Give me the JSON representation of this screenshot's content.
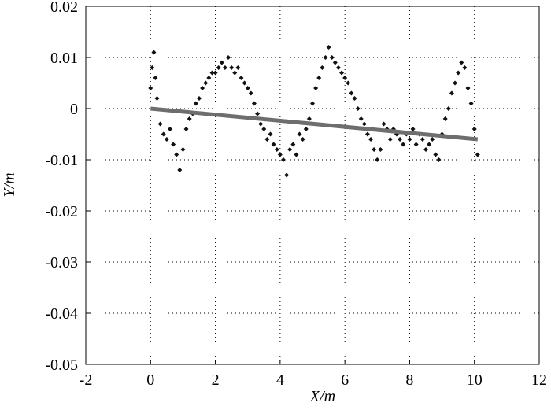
{
  "chart_data": {
    "type": "scatter",
    "xlabel": "X/m",
    "ylabel": "Y/m",
    "xlim": [
      -2,
      12
    ],
    "ylim": [
      -0.05,
      0.02
    ],
    "xticks": [
      -2,
      0,
      2,
      4,
      6,
      8,
      10,
      12
    ],
    "yticks": [
      -0.05,
      -0.04,
      -0.03,
      -0.02,
      -0.01,
      0,
      0.01,
      0.02
    ],
    "grid": true,
    "series": [
      {
        "type": "scatter",
        "color": "#111111",
        "x": [
          0.0,
          0.05,
          0.1,
          0.15,
          0.2,
          0.3,
          0.4,
          0.5,
          0.6,
          0.7,
          0.8,
          0.9,
          1.0,
          1.1,
          1.2,
          1.3,
          1.4,
          1.5,
          1.6,
          1.7,
          1.8,
          1.9,
          2.0,
          2.1,
          2.2,
          2.3,
          2.4,
          2.5,
          2.6,
          2.7,
          2.8,
          2.9,
          3.0,
          3.1,
          3.2,
          3.3,
          3.4,
          3.5,
          3.6,
          3.7,
          3.8,
          3.9,
          4.0,
          4.1,
          4.2,
          4.3,
          4.4,
          4.5,
          4.6,
          4.7,
          4.8,
          4.9,
          5.0,
          5.1,
          5.2,
          5.3,
          5.4,
          5.5,
          5.6,
          5.7,
          5.8,
          5.9,
          6.0,
          6.1,
          6.2,
          6.3,
          6.4,
          6.5,
          6.6,
          6.7,
          6.8,
          6.9,
          7.0,
          7.1,
          7.2,
          7.3,
          7.4,
          7.5,
          7.6,
          7.7,
          7.8,
          7.9,
          8.0,
          8.1,
          8.2,
          8.3,
          8.4,
          8.5,
          8.6,
          8.7,
          8.8,
          8.9,
          9.0,
          9.1,
          9.2,
          9.3,
          9.4,
          9.5,
          9.6,
          9.7,
          9.8,
          9.9,
          10.0,
          10.1
        ],
        "values": [
          0.004,
          0.008,
          0.011,
          0.006,
          0.002,
          -0.003,
          -0.005,
          -0.006,
          -0.004,
          -0.007,
          -0.009,
          -0.012,
          -0.008,
          -0.004,
          -0.002,
          -0.001,
          0.001,
          0.002,
          0.004,
          0.005,
          0.006,
          0.007,
          0.007,
          0.008,
          0.009,
          0.008,
          0.01,
          0.008,
          0.007,
          0.008,
          0.006,
          0.005,
          0.004,
          0.003,
          0.001,
          -0.001,
          -0.003,
          -0.004,
          -0.006,
          -0.005,
          -0.007,
          -0.008,
          -0.009,
          -0.01,
          -0.013,
          -0.008,
          -0.007,
          -0.009,
          -0.005,
          -0.006,
          -0.004,
          -0.002,
          0.001,
          0.004,
          0.006,
          0.008,
          0.01,
          0.012,
          0.01,
          0.009,
          0.008,
          0.007,
          0.006,
          0.005,
          0.003,
          0.002,
          0.0,
          -0.002,
          -0.003,
          -0.005,
          -0.006,
          -0.008,
          -0.01,
          -0.008,
          -0.003,
          -0.004,
          -0.006,
          -0.004,
          -0.005,
          -0.006,
          -0.007,
          -0.005,
          -0.006,
          -0.004,
          -0.007,
          -0.005,
          -0.006,
          -0.008,
          -0.007,
          -0.006,
          -0.009,
          -0.01,
          -0.005,
          -0.002,
          0.0,
          0.003,
          0.005,
          0.007,
          0.009,
          0.008,
          0.004,
          0.001,
          -0.004,
          -0.009
        ]
      },
      {
        "type": "line",
        "color": "#6e6e6e",
        "x": [
          0,
          10.1
        ],
        "values": [
          0,
          -0.006
        ]
      }
    ]
  }
}
